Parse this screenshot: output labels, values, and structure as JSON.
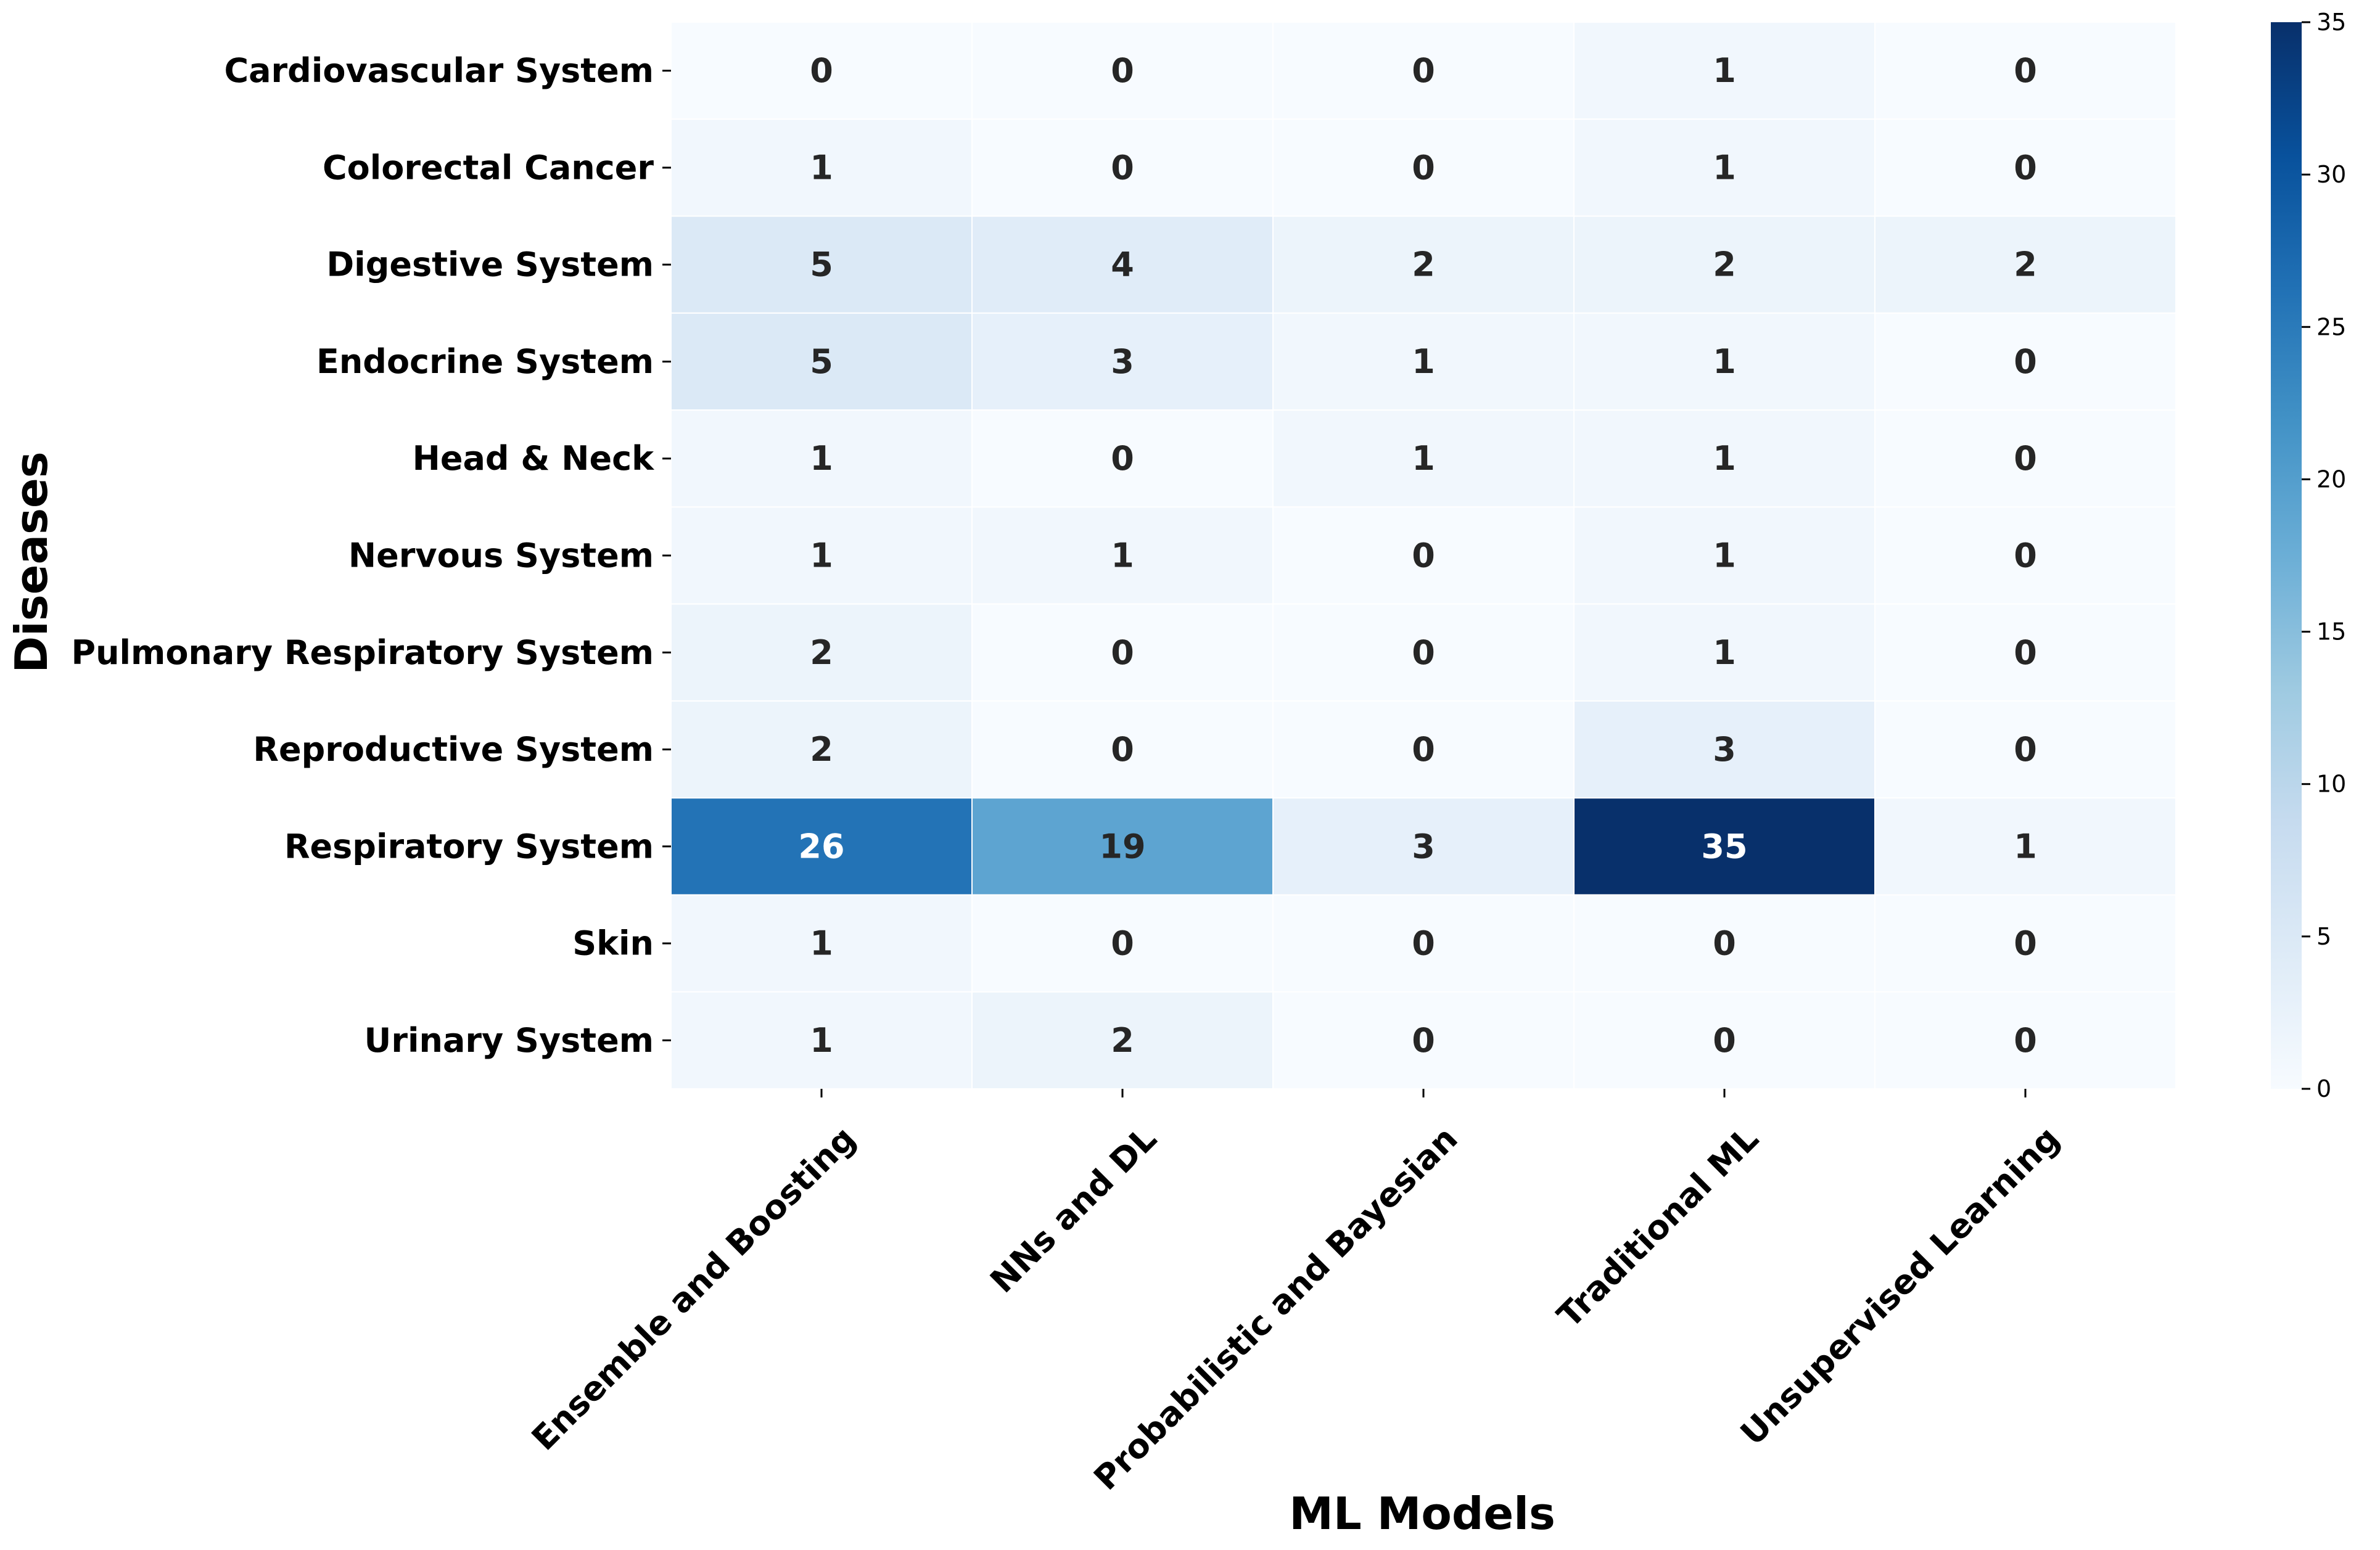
{
  "chart_data": {
    "type": "heatmap",
    "title": "",
    "xlabel": "ML Models",
    "ylabel": "Diseases",
    "x_categories": [
      "Ensemble and Boosting",
      "NNs and DL",
      "Probabilistic and Bayesian",
      "Traditional ML",
      "Unsupervised Learning"
    ],
    "y_categories": [
      "Cardiovascular System",
      "Colorectal Cancer",
      "Digestive System",
      "Endocrine System",
      "Head & Neck",
      "Nervous System",
      "Pulmonary Respiratory System",
      "Reproductive System",
      "Respiratory System",
      "Skin",
      "Urinary System"
    ],
    "values": [
      [
        0,
        0,
        0,
        1,
        0
      ],
      [
        1,
        0,
        0,
        1,
        0
      ],
      [
        5,
        4,
        2,
        2,
        2
      ],
      [
        5,
        3,
        1,
        1,
        0
      ],
      [
        1,
        0,
        1,
        1,
        0
      ],
      [
        1,
        1,
        0,
        1,
        0
      ],
      [
        2,
        0,
        0,
        1,
        0
      ],
      [
        2,
        0,
        0,
        3,
        0
      ],
      [
        26,
        19,
        3,
        35,
        1
      ],
      [
        1,
        0,
        0,
        0,
        0
      ],
      [
        1,
        2,
        0,
        0,
        0
      ]
    ],
    "colorbar": {
      "min": 0,
      "max": 35,
      "ticks": [
        0,
        5,
        10,
        15,
        20,
        25,
        30,
        35
      ],
      "colormap": "Blues"
    },
    "annotated": true,
    "grid_lines_color": "#ffffff"
  }
}
